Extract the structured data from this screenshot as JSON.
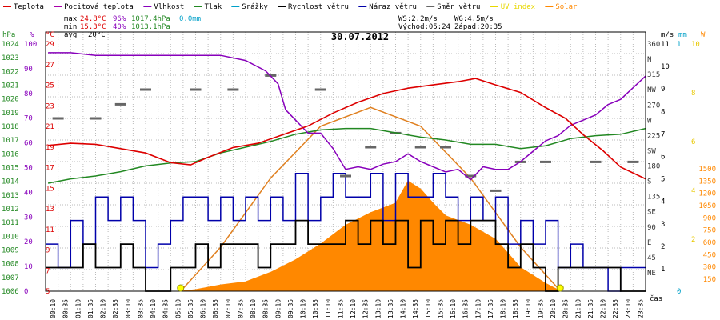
{
  "legend": [
    {
      "label": "Teplota",
      "color": "#dd0000"
    },
    {
      "label": "Pocitová teplota",
      "color": "#aa00aa"
    },
    {
      "label": "Vlhkost",
      "color": "#8800bb"
    },
    {
      "label": "Tlak",
      "color": "#228822"
    },
    {
      "label": "Srážky",
      "color": "#00a0c8"
    },
    {
      "label": "Rychlost větru",
      "color": "#000000"
    },
    {
      "label": "Náraz větru",
      "color": "#0000aa"
    },
    {
      "label": "Směr větru",
      "color": "#666666"
    },
    {
      "label": "UV index",
      "color": "#e8d800"
    },
    {
      "label": "Solar",
      "color": "#ff8800"
    }
  ],
  "stats": {
    "max_label": "max",
    "max_temp": "24.8°C",
    "max_hum": "96%",
    "max_press": "1017.4hPa",
    "rain": "0.0mm",
    "min_label": "min",
    "min_temp": "15.3°C",
    "min_hum": "40%",
    "min_press": "1013.1hPa",
    "avg_label": "avg",
    "avg_temp": "20°C"
  },
  "wind_info": {
    "ws": "WS:2.2m/s",
    "wg": "WG:4.5m/s",
    "sunrise": "Východ:05:24",
    "sunset": "Západ:20:35"
  },
  "date": "30.07.2012",
  "xlabel": "čas",
  "axes": {
    "hpa": {
      "unit": "hPa",
      "ticks": [
        "1024",
        "1023",
        "1022",
        "1021",
        "1020",
        "1019",
        "1018",
        "1017",
        "1016",
        "1015",
        "1014",
        "1013",
        "1012",
        "1011",
        "1010",
        "1009",
        "1008",
        "1007",
        "1006"
      ]
    },
    "pct": {
      "unit": "%",
      "ticks": [
        "100",
        "90",
        "80",
        "70",
        "60",
        "50",
        "40",
        "30",
        "20",
        "10",
        "0"
      ]
    },
    "temp": {
      "unit": "°C",
      "ticks": [
        "29",
        "27",
        "25",
        "23",
        "21",
        "19",
        "17",
        "15",
        "13",
        "11",
        "9",
        "7",
        "5"
      ]
    },
    "dir": {
      "unit": "m/s",
      "ticks": [
        "360",
        "N",
        "315",
        "NW",
        "270",
        "W",
        "225",
        "SW",
        "180",
        "S",
        "135",
        "SE",
        "90",
        "E",
        "45",
        "NE"
      ]
    },
    "ms": {
      "ticks": [
        "11",
        "10",
        "9",
        "8",
        "7",
        "6",
        "5",
        "4",
        "3",
        "2",
        "1"
      ]
    },
    "mm": {
      "unit": "mm",
      "ticks": [
        "1",
        "0"
      ]
    },
    "uv": {
      "ticks": [
        "10",
        "8",
        "6",
        "4",
        "2"
      ]
    },
    "w": {
      "unit": "W",
      "ticks": [
        "1500",
        "1350",
        "1200",
        "1050",
        "900",
        "750",
        "600",
        "450",
        "300",
        "150"
      ]
    }
  },
  "time_labels": [
    "00:10",
    "00:35",
    "01:10",
    "01:35",
    "02:10",
    "02:35",
    "03:10",
    "03:35",
    "04:10",
    "04:35",
    "05:10",
    "05:35",
    "06:10",
    "06:35",
    "07:10",
    "07:35",
    "08:10",
    "08:35",
    "09:10",
    "09:35",
    "10:10",
    "10:35",
    "11:10",
    "11:35",
    "12:10",
    "12:35",
    "13:10",
    "13:35",
    "14:10",
    "14:35",
    "15:10",
    "15:35",
    "16:10",
    "16:35",
    "17:10",
    "17:35",
    "18:10",
    "18:35",
    "19:10",
    "19:35",
    "20:10",
    "20:35",
    "21:10",
    "21:35",
    "22:10",
    "22:35",
    "23:10",
    "23:35"
  ],
  "chart_data": {
    "type": "line",
    "title": "30.07.2012",
    "xlabel": "čas",
    "x_unit": "hours",
    "series": [
      {
        "name": "Teplota",
        "unit": "°C",
        "color": "#dd0000",
        "points": [
          [
            0.1,
            18.5
          ],
          [
            1,
            18.7
          ],
          [
            2,
            18.6
          ],
          [
            3,
            18.2
          ],
          [
            4,
            17.8
          ],
          [
            5,
            16.9
          ],
          [
            5.8,
            16.7
          ],
          [
            6.5,
            17.4
          ],
          [
            7.5,
            18.3
          ],
          [
            8.5,
            18.7
          ],
          [
            9.5,
            19.5
          ],
          [
            10.5,
            20.3
          ],
          [
            11.5,
            21.5
          ],
          [
            12.5,
            22.5
          ],
          [
            13.5,
            23.3
          ],
          [
            14.5,
            23.8
          ],
          [
            15.5,
            24.1
          ],
          [
            16.5,
            24.4
          ],
          [
            17.2,
            24.7
          ],
          [
            18,
            24.1
          ],
          [
            19,
            23.4
          ],
          [
            20,
            22.0
          ],
          [
            20.8,
            21.0
          ],
          [
            21.5,
            19.5
          ],
          [
            22.3,
            18.0
          ],
          [
            23,
            16.5
          ],
          [
            24,
            15.4
          ]
        ]
      },
      {
        "name": "Vlhkost",
        "unit": "%",
        "color": "#8800bb",
        "points": [
          [
            0.1,
            92
          ],
          [
            1,
            92
          ],
          [
            2,
            91
          ],
          [
            3,
            91
          ],
          [
            4,
            91
          ],
          [
            5,
            91
          ],
          [
            6,
            91
          ],
          [
            7,
            91
          ],
          [
            8,
            89
          ],
          [
            8.8,
            85
          ],
          [
            9.3,
            80
          ],
          [
            9.6,
            70
          ],
          [
            10,
            66
          ],
          [
            10.5,
            61
          ],
          [
            11,
            61
          ],
          [
            11.5,
            55
          ],
          [
            12,
            47
          ],
          [
            12.5,
            48
          ],
          [
            13,
            47
          ],
          [
            13.5,
            49
          ],
          [
            14,
            50
          ],
          [
            14.5,
            53
          ],
          [
            15,
            50
          ],
          [
            15.5,
            48
          ],
          [
            16,
            46
          ],
          [
            16.5,
            47
          ],
          [
            17,
            43
          ],
          [
            17.5,
            48
          ],
          [
            18,
            47
          ],
          [
            18.5,
            47
          ],
          [
            19,
            50
          ],
          [
            19.5,
            54
          ],
          [
            20,
            58
          ],
          [
            20.5,
            60
          ],
          [
            21,
            64
          ],
          [
            21.5,
            66
          ],
          [
            22,
            68
          ],
          [
            22.5,
            72
          ],
          [
            23,
            74
          ],
          [
            24,
            83
          ]
        ]
      },
      {
        "name": "Tlak",
        "unit": "hPa",
        "color": "#228822",
        "points": [
          [
            0.1,
            1013.5
          ],
          [
            1,
            1013.8
          ],
          [
            2,
            1014.0
          ],
          [
            3,
            1014.3
          ],
          [
            4,
            1014.7
          ],
          [
            5,
            1014.9
          ],
          [
            6,
            1015.0
          ],
          [
            7,
            1015.6
          ],
          [
            8,
            1016.0
          ],
          [
            9,
            1016.4
          ],
          [
            10,
            1016.9
          ],
          [
            11,
            1017.2
          ],
          [
            12,
            1017.3
          ],
          [
            13,
            1017.3
          ],
          [
            14,
            1017.0
          ],
          [
            15,
            1016.7
          ],
          [
            16,
            1016.5
          ],
          [
            17,
            1016.2
          ],
          [
            18,
            1016.2
          ],
          [
            19,
            1015.9
          ],
          [
            20,
            1016.1
          ],
          [
            21,
            1016.6
          ],
          [
            22,
            1016.8
          ],
          [
            23,
            1016.9
          ],
          [
            24,
            1017.3
          ]
        ]
      },
      {
        "name": "Rychlost větru",
        "unit": "m/s",
        "color": "#000000",
        "points": [
          [
            0,
            1
          ],
          [
            1,
            1
          ],
          [
            1.5,
            2
          ],
          [
            2,
            1
          ],
          [
            3,
            2
          ],
          [
            3.5,
            1
          ],
          [
            4,
            0
          ],
          [
            5,
            1
          ],
          [
            6,
            2
          ],
          [
            6.5,
            1
          ],
          [
            7,
            2
          ],
          [
            8,
            2
          ],
          [
            8.5,
            1
          ],
          [
            9,
            2
          ],
          [
            10,
            3
          ],
          [
            10.5,
            2
          ],
          [
            11,
            2
          ],
          [
            12,
            3
          ],
          [
            12.5,
            2
          ],
          [
            13,
            3
          ],
          [
            13.5,
            2
          ],
          [
            14,
            3
          ],
          [
            14.5,
            1
          ],
          [
            15,
            3
          ],
          [
            15.5,
            2
          ],
          [
            16,
            3
          ],
          [
            16.5,
            2
          ],
          [
            17,
            3
          ],
          [
            17.5,
            3
          ],
          [
            18,
            2
          ],
          [
            18.5,
            1
          ],
          [
            19,
            2
          ],
          [
            19.5,
            1
          ],
          [
            20,
            0
          ],
          [
            20.5,
            1
          ],
          [
            21,
            1
          ],
          [
            22,
            1
          ],
          [
            23,
            0
          ],
          [
            24,
            0
          ]
        ]
      },
      {
        "name": "Náraz větru",
        "unit": "m/s",
        "color": "#0000aa",
        "points": [
          [
            0,
            2
          ],
          [
            0.5,
            1
          ],
          [
            1,
            3
          ],
          [
            1.5,
            2
          ],
          [
            2,
            4
          ],
          [
            2.5,
            3
          ],
          [
            3,
            4
          ],
          [
            3.5,
            3
          ],
          [
            4,
            1
          ],
          [
            4.5,
            2
          ],
          [
            5,
            3
          ],
          [
            5.5,
            4
          ],
          [
            6,
            4
          ],
          [
            6.5,
            3
          ],
          [
            7,
            4
          ],
          [
            7.5,
            3
          ],
          [
            8,
            4
          ],
          [
            8.5,
            3
          ],
          [
            9,
            4
          ],
          [
            9.5,
            3
          ],
          [
            10,
            5
          ],
          [
            10.5,
            3
          ],
          [
            11,
            4
          ],
          [
            11.5,
            5
          ],
          [
            12,
            4
          ],
          [
            12.5,
            4
          ],
          [
            13,
            5
          ],
          [
            13.5,
            3
          ],
          [
            14,
            5
          ],
          [
            14.5,
            4
          ],
          [
            15,
            4
          ],
          [
            15.5,
            5
          ],
          [
            16,
            4
          ],
          [
            16.5,
            3
          ],
          [
            17,
            4
          ],
          [
            17.5,
            3
          ],
          [
            18,
            4
          ],
          [
            18.5,
            2
          ],
          [
            19,
            3
          ],
          [
            19.5,
            2
          ],
          [
            20,
            3
          ],
          [
            20.5,
            1
          ],
          [
            21,
            2
          ],
          [
            21.5,
            1
          ],
          [
            22,
            1
          ],
          [
            22.5,
            0
          ],
          [
            23,
            1
          ],
          [
            24,
            1
          ]
        ]
      },
      {
        "name": "Solar",
        "unit": "W/m²",
        "color": "#ff8800",
        "points": [
          [
            5.4,
            0
          ],
          [
            6,
            10
          ],
          [
            7,
            40
          ],
          [
            8,
            60
          ],
          [
            9,
            120
          ],
          [
            10,
            200
          ],
          [
            11,
            300
          ],
          [
            12,
            420
          ],
          [
            13,
            500
          ],
          [
            14,
            560
          ],
          [
            14.5,
            700
          ],
          [
            15,
            650
          ],
          [
            15.5,
            560
          ],
          [
            16,
            480
          ],
          [
            17,
            420
          ],
          [
            18,
            330
          ],
          [
            19,
            150
          ],
          [
            20,
            50
          ],
          [
            20.6,
            0
          ]
        ]
      },
      {
        "name": "Solar theoretical",
        "unit": "W/m²",
        "color": "#e08020",
        "points": [
          [
            5.4,
            0
          ],
          [
            7,
            280
          ],
          [
            9,
            720
          ],
          [
            11,
            1050
          ],
          [
            13,
            1170
          ],
          [
            15,
            1050
          ],
          [
            17,
            720
          ],
          [
            19,
            280
          ],
          [
            20.6,
            0
          ]
        ]
      },
      {
        "name": "Směr větru",
        "unit": "°",
        "color": "#666666",
        "points": [
          [
            0.5,
            270
          ],
          [
            2,
            270
          ],
          [
            3,
            292
          ],
          [
            4,
            315
          ],
          [
            6,
            315
          ],
          [
            7.5,
            315
          ],
          [
            9,
            337
          ],
          [
            11,
            315
          ],
          [
            12,
            180
          ],
          [
            13,
            225
          ],
          [
            14,
            247
          ],
          [
            15,
            225
          ],
          [
            16,
            225
          ],
          [
            17,
            180
          ],
          [
            18,
            157
          ],
          [
            19,
            202
          ],
          [
            20,
            202
          ],
          [
            22,
            202
          ],
          [
            23.5,
            202
          ]
        ]
      }
    ],
    "sunrise": "05:24",
    "sunset": "20:35",
    "ylim_temp": [
      5,
      29
    ],
    "ylim_pressure": [
      1006,
      1024
    ],
    "ylim_humidity": [
      0,
      100
    ],
    "ylim_wind": [
      0,
      11
    ],
    "ylim_solar": [
      0,
      1650
    ]
  }
}
